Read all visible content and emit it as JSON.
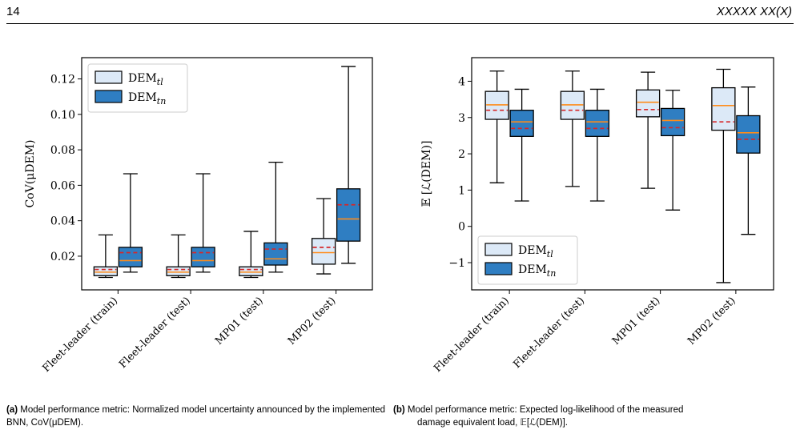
{
  "header": {
    "page_number": "14",
    "journal": "XXXXX XX(X)"
  },
  "captions": {
    "a": {
      "label": "(a)",
      "text": "Model performance metric: Normalized model uncertainty announced by the implemented BNN, CoV(μDEM)."
    },
    "b": {
      "label": "(b)",
      "line1": "Model performance metric: Expected log-likelihood of the measured",
      "line2": "damage equivalent load, 𝔼[ℒ(DEM)]."
    }
  },
  "colors": {
    "light_box": "#dce9f7",
    "dark_box": "#2f7ec2",
    "median": "#ff8c1a",
    "mean": "#d62728",
    "edge": "#000000"
  },
  "chart_data": [
    {
      "type": "box",
      "panel": "a",
      "ylabel": "CoV(μDEM)",
      "ylim": [
        0.001,
        0.132
      ],
      "yticks": [
        0.02,
        0.04,
        0.06,
        0.08,
        0.1,
        0.12
      ],
      "ytick_labels": [
        "0.02",
        "0.04",
        "0.06",
        "0.08",
        "0.10",
        "0.12"
      ],
      "categories": [
        "Fleet-leader (train)",
        "Fleet-leader (test)",
        "MP01 (test)",
        "MP02 (test)"
      ],
      "legend_position": "top-left",
      "series": [
        {
          "name": "DEMtl",
          "base": "DEM",
          "sub": "tl",
          "color": "#dce9f7",
          "boxes": [
            {
              "whislo": 0.008,
              "q1": 0.009,
              "med": 0.011,
              "mean": 0.0125,
              "q3": 0.014,
              "whishi": 0.032
            },
            {
              "whislo": 0.008,
              "q1": 0.009,
              "med": 0.011,
              "mean": 0.0125,
              "q3": 0.014,
              "whishi": 0.032
            },
            {
              "whislo": 0.008,
              "q1": 0.009,
              "med": 0.011,
              "mean": 0.0125,
              "q3": 0.014,
              "whishi": 0.034
            },
            {
              "whislo": 0.01,
              "q1": 0.0155,
              "med": 0.022,
              "mean": 0.025,
              "q3": 0.03,
              "whishi": 0.0525
            }
          ]
        },
        {
          "name": "DEMtn",
          "base": "DEM",
          "sub": "tn",
          "color": "#2f7ec2",
          "boxes": [
            {
              "whislo": 0.011,
              "q1": 0.014,
              "med": 0.0175,
              "mean": 0.022,
              "q3": 0.025,
              "whishi": 0.0665
            },
            {
              "whislo": 0.011,
              "q1": 0.014,
              "med": 0.0175,
              "mean": 0.022,
              "q3": 0.025,
              "whishi": 0.0665
            },
            {
              "whislo": 0.011,
              "q1": 0.015,
              "med": 0.0185,
              "mean": 0.024,
              "q3": 0.0275,
              "whishi": 0.073
            },
            {
              "whislo": 0.016,
              "q1": 0.0285,
              "med": 0.041,
              "mean": 0.049,
              "q3": 0.058,
              "whishi": 0.127
            }
          ]
        }
      ]
    },
    {
      "type": "box",
      "panel": "b",
      "ylabel": "𝔼 [ℒ(DEM)]",
      "ylim": [
        -1.75,
        4.65
      ],
      "yticks": [
        -1,
        0,
        1,
        2,
        3,
        4
      ],
      "ytick_labels": [
        "−1",
        "0",
        "1",
        "2",
        "3",
        "4"
      ],
      "categories": [
        "Fleet-leader (train)",
        "Fleet-leader (test)",
        "MP01 (test)",
        "MP02 (test)"
      ],
      "legend_position": "bottom-left",
      "series": [
        {
          "name": "DEMtl",
          "base": "DEM",
          "sub": "tl",
          "color": "#dce9f7",
          "boxes": [
            {
              "whislo": 1.2,
              "q1": 2.95,
              "med": 3.35,
              "mean": 3.2,
              "q3": 3.72,
              "whishi": 4.28
            },
            {
              "whislo": 1.1,
              "q1": 2.95,
              "med": 3.35,
              "mean": 3.2,
              "q3": 3.72,
              "whishi": 4.28
            },
            {
              "whislo": 1.05,
              "q1": 3.02,
              "med": 3.42,
              "mean": 3.22,
              "q3": 3.76,
              "whishi": 4.25
            },
            {
              "whislo": -1.55,
              "q1": 2.65,
              "med": 3.33,
              "mean": 2.88,
              "q3": 3.82,
              "whishi": 4.33
            }
          ]
        },
        {
          "name": "DEMtn",
          "base": "DEM",
          "sub": "tn",
          "color": "#2f7ec2",
          "boxes": [
            {
              "whislo": 0.7,
              "q1": 2.48,
              "med": 2.88,
              "mean": 2.7,
              "q3": 3.2,
              "whishi": 3.78
            },
            {
              "whislo": 0.7,
              "q1": 2.48,
              "med": 2.88,
              "mean": 2.7,
              "q3": 3.2,
              "whishi": 3.78
            },
            {
              "whislo": 0.45,
              "q1": 2.5,
              "med": 2.92,
              "mean": 2.72,
              "q3": 3.25,
              "whishi": 3.75
            },
            {
              "whislo": -0.22,
              "q1": 2.02,
              "med": 2.58,
              "mean": 2.4,
              "q3": 3.05,
              "whishi": 3.84
            }
          ]
        }
      ]
    }
  ]
}
